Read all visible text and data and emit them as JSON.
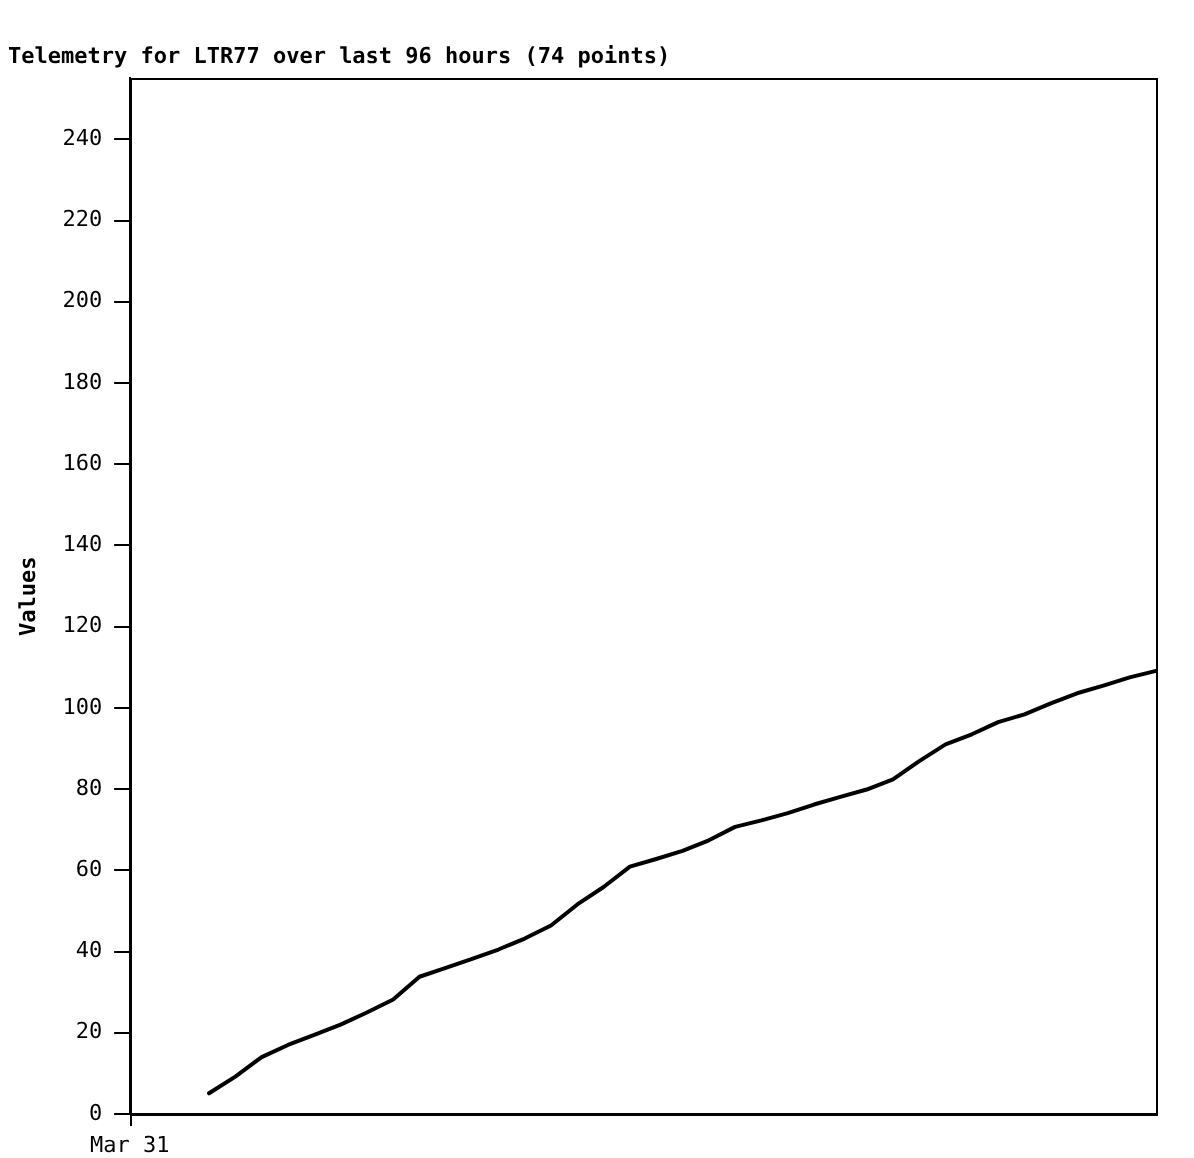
{
  "chart_data": {
    "type": "line",
    "title": "Telemetry for LTR77 over last 96 hours (74 points)",
    "ylabel": "Values",
    "categories": [
      null,
      null,
      null,
      null,
      null,
      null,
      null,
      null,
      null,
      null,
      null,
      null,
      null,
      null,
      null,
      null,
      null,
      null,
      null,
      null,
      null,
      null,
      null,
      null,
      null,
      null,
      null,
      null,
      null,
      null,
      null,
      null,
      null,
      null,
      null,
      null,
      null,
      null,
      null,
      null
    ],
    "series": [
      {
        "color": "#000000",
        "values": [
          null,
          null,
          null,
          5.1,
          9.2,
          14.0,
          17.0,
          19.5,
          22.0,
          25.0,
          28.2,
          33.8,
          36.0,
          38.2,
          40.5,
          43.2,
          46.4,
          51.6,
          55.9,
          60.9,
          62.8,
          64.8,
          67.4,
          70.7,
          72.3,
          74.1,
          76.2,
          78.1,
          79.9,
          82.4,
          86.9,
          91.0,
          93.5,
          96.5,
          98.4,
          101.1,
          103.6,
          105.5,
          107.5,
          109.1
        ]
      }
    ],
    "ylim": [
      0,
      255
    ],
    "yticks": [
      0,
      20,
      40,
      60,
      80,
      100,
      120,
      140,
      160,
      180,
      200,
      220,
      240
    ],
    "tick_labels": "y",
    "annotations": [
      "Mar 31"
    ],
    "legend": false,
    "grid": false
  }
}
